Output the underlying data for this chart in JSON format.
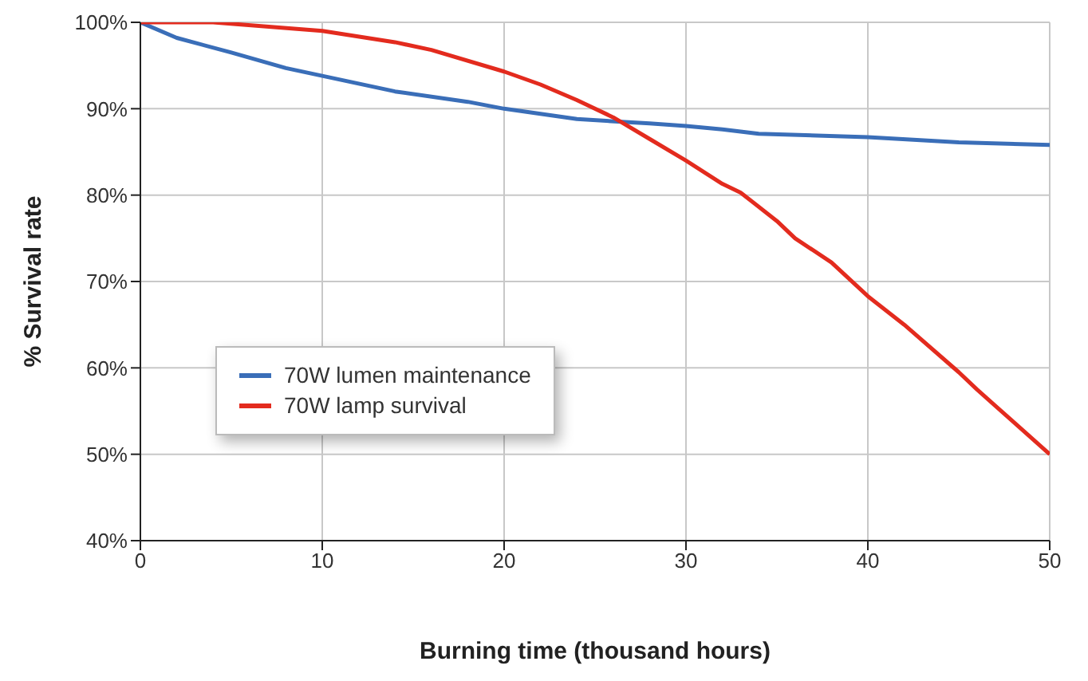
{
  "chart_data": {
    "type": "line",
    "xlabel": "Burning time (thousand hours)",
    "ylabel": "% Survival rate",
    "xlim": [
      0,
      50
    ],
    "xticks": [
      0,
      10,
      20,
      30,
      40,
      50
    ],
    "ylim": [
      40,
      100
    ],
    "yticks": [
      {
        "value": 40,
        "label": "40%"
      },
      {
        "value": 50,
        "label": "50%"
      },
      {
        "value": 60,
        "label": "60%"
      },
      {
        "value": 70,
        "label": "70%"
      },
      {
        "value": 80,
        "label": "80%"
      },
      {
        "value": 90,
        "label": "90%"
      },
      {
        "value": 100,
        "label": "100%"
      }
    ],
    "grid": true,
    "legend": "center left",
    "marker": "none",
    "line_style": "solid",
    "series": [
      {
        "name": "70W lumen maintenance",
        "color": "#3a6eb8",
        "x": [
          0,
          2,
          5,
          8,
          10,
          14,
          18,
          20,
          24,
          28,
          30,
          32,
          34,
          40,
          45,
          50
        ],
        "values": [
          100,
          98.2,
          96.5,
          94.7,
          93.8,
          92,
          90.8,
          90,
          88.8,
          88.3,
          88,
          87.6,
          87.1,
          86.7,
          86.1,
          85.8
        ]
      },
      {
        "name": "70W lamp survival",
        "color": "#e32b1e",
        "x": [
          0,
          4,
          10,
          14,
          16,
          20,
          22,
          24,
          26,
          28,
          30,
          32,
          33,
          35,
          36,
          38,
          40,
          42,
          45,
          46,
          50
        ],
        "values": [
          100,
          100,
          99,
          97.7,
          96.8,
          94.3,
          92.8,
          91,
          89,
          86.5,
          84,
          81.3,
          80.3,
          77,
          75,
          72.2,
          68.3,
          65,
          59.5,
          57.5,
          50
        ]
      }
    ]
  }
}
